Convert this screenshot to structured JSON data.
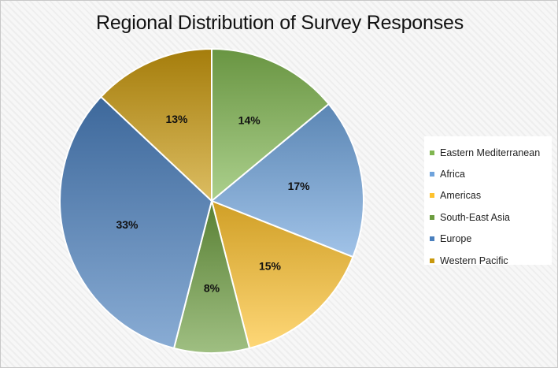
{
  "chart_data": {
    "type": "pie",
    "title": "Regional Distribution of Survey Responses",
    "categories": [
      "Eastern Mediterranean",
      "Africa",
      "Americas",
      "South-East Asia",
      "Europe",
      "Western Pacific"
    ],
    "values": [
      14,
      17,
      15,
      8,
      33,
      13
    ],
    "labels": [
      "14%",
      "17%",
      "15%",
      "8%",
      "33%",
      "13%"
    ],
    "colors": [
      "#80b650",
      "#6fa3dc",
      "#fec22e",
      "#6c9c3f",
      "#4a7fbd",
      "#c9990d"
    ],
    "legend_position": "right"
  }
}
